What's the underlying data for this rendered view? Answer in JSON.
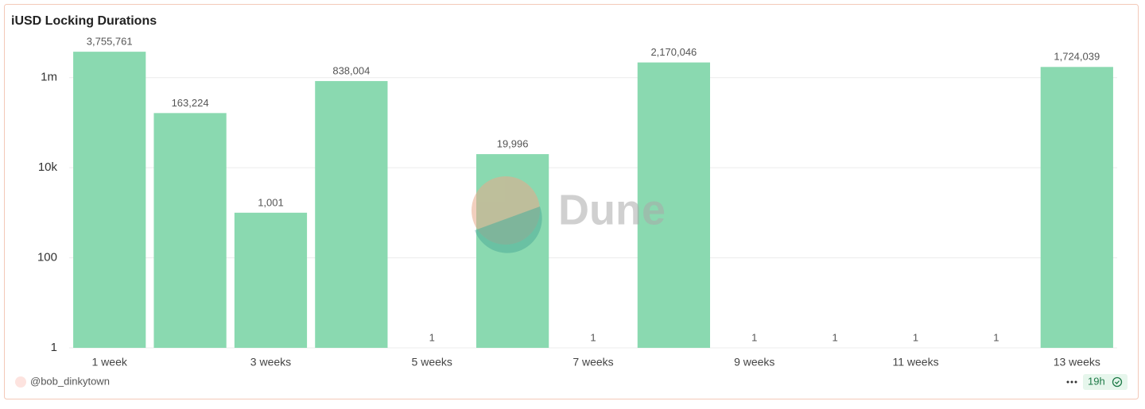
{
  "chart_data": {
    "type": "bar",
    "title": "iUSD Locking Durations",
    "categories": [
      "1 week",
      null,
      "3 weeks",
      null,
      "5 weeks",
      null,
      "7 weeks",
      null,
      "9 weeks",
      null,
      "11 weeks",
      null,
      "13 weeks"
    ],
    "values": [
      3755761,
      163224,
      1001,
      838004,
      1,
      19996,
      1,
      2170046,
      1,
      1,
      1,
      1,
      1724039
    ],
    "value_labels": [
      "3,755,761",
      "163,224",
      "1,001",
      "838,004",
      "1",
      "19,996",
      "1",
      "2,170,046",
      "1",
      "1",
      "1",
      "1",
      "1,724,039"
    ],
    "color": "#8ad9b0",
    "log_scale": true,
    "grid": true,
    "ylim": [
      1,
      10000000
    ],
    "yticks": [
      1,
      100,
      {
        "value": 10000,
        "label": "10k"
      },
      {
        "value": 1000000,
        "label": "1m"
      }
    ]
  },
  "watermark": "Dune",
  "footer": {
    "author": "@bob_dinkytown",
    "age": "19h"
  }
}
